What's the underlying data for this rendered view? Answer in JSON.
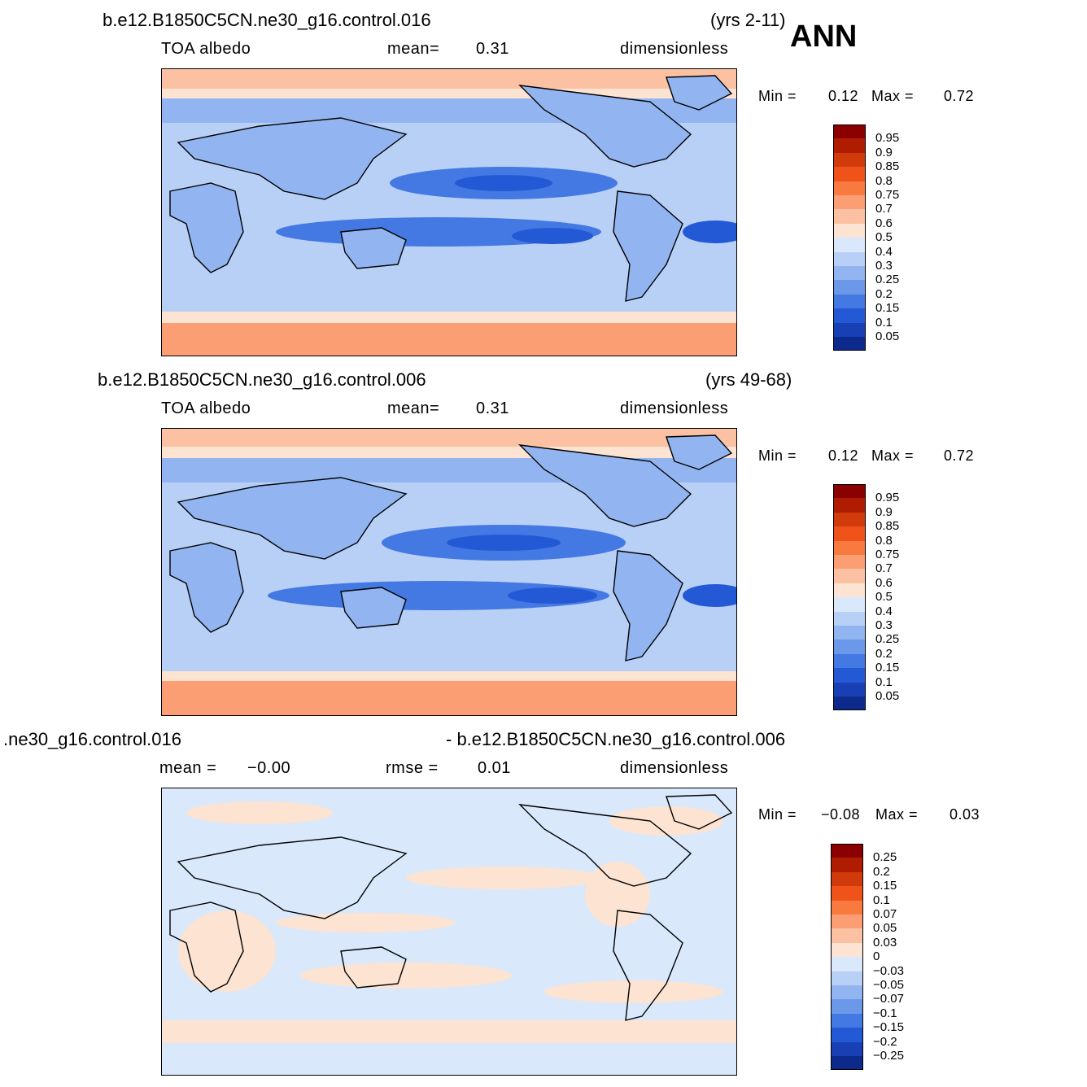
{
  "season": "ANN",
  "panels": [
    {
      "case": "b.e12.B1850C5CN.ne30_g16.control.016",
      "years": "(yrs 2-11)",
      "variable": "TOA  albedo",
      "stat_label": "mean=",
      "stat_value": "0.31",
      "units": "dimensionless",
      "min_label": "Min  =",
      "min_value": "0.12",
      "max_label": "Max  =",
      "max_value": "0.72",
      "colorbar": {
        "labels": [
          "0.95",
          "0.9",
          "0.85",
          "0.8",
          "0.75",
          "0.7",
          "0.6",
          "0.5",
          "0.4",
          "0.3",
          "0.25",
          "0.2",
          "0.15",
          "0.1",
          "0.05"
        ],
        "colors": [
          "#8b0000",
          "#b01c00",
          "#d13a0b",
          "#ef5319",
          "#f97a3e",
          "#fb9e73",
          "#fcc1a2",
          "#fde3d1",
          "#d9e8fb",
          "#b8d0f6",
          "#92b5f1",
          "#6c98ea",
          "#4478e2",
          "#2459d6",
          "#1840b4",
          "#0c2a8c"
        ]
      }
    },
    {
      "case": "b.e12.B1850C5CN.ne30_g16.control.006",
      "years": "(yrs 49-68)",
      "variable": "TOA  albedo",
      "stat_label": "mean=",
      "stat_value": "0.31",
      "units": "dimensionless",
      "min_label": "Min  =",
      "min_value": "0.12",
      "max_label": "Max  =",
      "max_value": "0.72",
      "colorbar": {
        "labels": [
          "0.95",
          "0.9",
          "0.85",
          "0.8",
          "0.75",
          "0.7",
          "0.6",
          "0.5",
          "0.4",
          "0.3",
          "0.25",
          "0.2",
          "0.15",
          "0.1",
          "0.05"
        ],
        "colors": [
          "#8b0000",
          "#b01c00",
          "#d13a0b",
          "#ef5319",
          "#f97a3e",
          "#fb9e73",
          "#fcc1a2",
          "#fde3d1",
          "#d9e8fb",
          "#b8d0f6",
          "#92b5f1",
          "#6c98ea",
          "#4478e2",
          "#2459d6",
          "#1840b4",
          "#0c2a8c"
        ]
      }
    },
    {
      "case_left": ".ne30_g16.control.016",
      "case_right": "- b.e12.B1850C5CN.ne30_g16.control.006",
      "mean_label": "mean  =",
      "mean_value": "−0.00",
      "rmse_label": "rmse  =",
      "rmse_value": "0.01",
      "units": "dimensionless",
      "min_label": "Min  =",
      "min_value": "−0.08",
      "max_label": "Max  =",
      "max_value": "0.03",
      "colorbar": {
        "labels": [
          "0.25",
          "0.2",
          "0.15",
          "0.1",
          "0.07",
          "0.05",
          "0.03",
          "0",
          "−0.03",
          "−0.05",
          "−0.07",
          "−0.1",
          "−0.15",
          "−0.2",
          "−0.25"
        ],
        "colors": [
          "#8b0000",
          "#b01c00",
          "#d13a0b",
          "#ef5319",
          "#f97a3e",
          "#fb9e73",
          "#fcc1a2",
          "#fde3d1",
          "#d9e8fb",
          "#b8d0f6",
          "#92b5f1",
          "#6c98ea",
          "#4478e2",
          "#2459d6",
          "#1840b4",
          "#0c2a8c"
        ]
      }
    }
  ]
}
